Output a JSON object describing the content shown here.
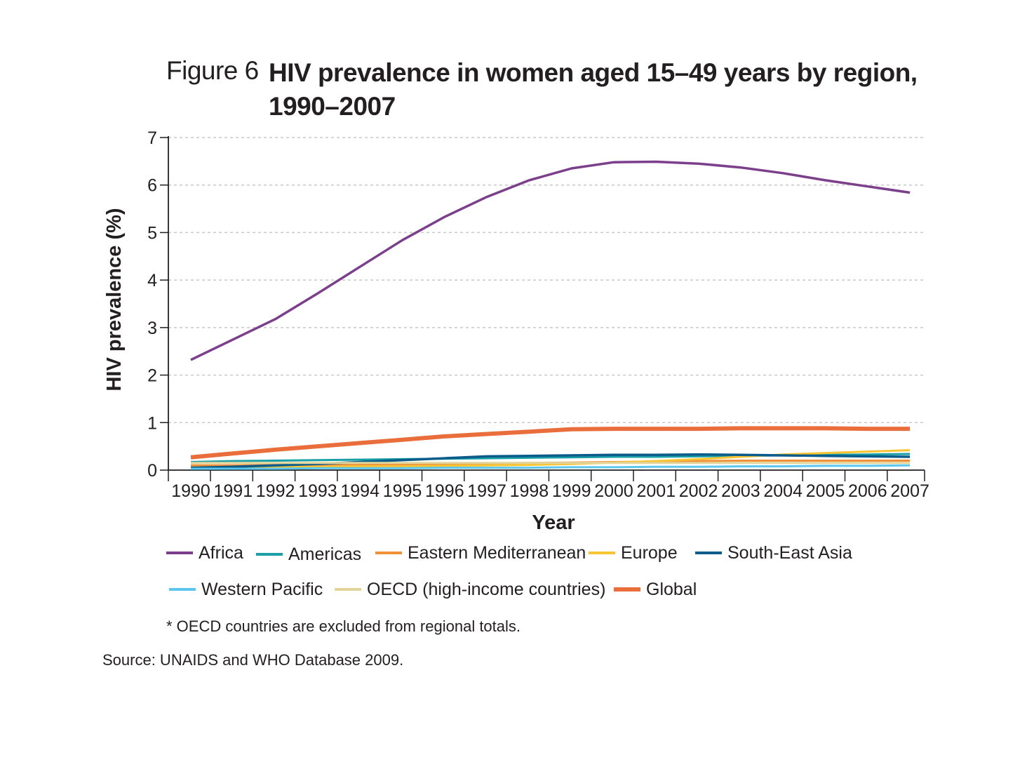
{
  "figure": {
    "label": "Figure 6",
    "title": "HIV prevalence in women aged 15–49 years by region, 1990–2007"
  },
  "footnote": "* OECD countries are excluded from regional totals.",
  "source": "Source: UNAIDS and WHO Database 2009.",
  "chart_data": {
    "type": "line",
    "title": "HIV prevalence in women aged 15–49 years by region, 1990–2007",
    "xlabel": "Year",
    "ylabel": "HIV prevalence (%)",
    "ylim": [
      0,
      7
    ],
    "yticks": [
      "0",
      "1",
      "2",
      "3",
      "4",
      "5",
      "6",
      "7"
    ],
    "x": [
      "1990",
      "1991",
      "1992",
      "1993",
      "1994",
      "1995",
      "1996",
      "1997",
      "1998",
      "1999",
      "2000",
      "2001",
      "2002",
      "2003",
      "2004",
      "2005",
      "2006",
      "2007"
    ],
    "grid": "horizontal dashed",
    "legend_position": "bottom",
    "series": [
      {
        "name": "Africa",
        "color": "#7b3f8c",
        "width": 3.5,
        "values": [
          2.32,
          2.75,
          3.18,
          3.72,
          4.28,
          4.84,
          5.33,
          5.75,
          6.1,
          6.35,
          6.48,
          6.49,
          6.45,
          6.37,
          6.25,
          6.1,
          5.97,
          5.84
        ]
      },
      {
        "name": "Americas",
        "color": "#1a9fa6",
        "width": 3,
        "values": [
          0.17,
          0.19,
          0.2,
          0.21,
          0.22,
          0.23,
          0.24,
          0.25,
          0.26,
          0.27,
          0.28,
          0.28,
          0.29,
          0.3,
          0.31,
          0.32,
          0.33,
          0.34
        ]
      },
      {
        "name": "Eastern Mediterranean",
        "color": "#f0913a",
        "width": 3,
        "values": [
          0.1,
          0.1,
          0.11,
          0.11,
          0.12,
          0.12,
          0.13,
          0.14,
          0.15,
          0.16,
          0.17,
          0.18,
          0.19,
          0.2,
          0.2,
          0.2,
          0.2,
          0.2
        ]
      },
      {
        "name": "Europe",
        "color": "#f7c531",
        "width": 3,
        "values": [
          0.06,
          0.06,
          0.07,
          0.07,
          0.08,
          0.08,
          0.09,
          0.1,
          0.11,
          0.13,
          0.16,
          0.19,
          0.23,
          0.28,
          0.33,
          0.36,
          0.39,
          0.42
        ]
      },
      {
        "name": "South-East Asia",
        "color": "#0b5c8a",
        "width": 3.5,
        "values": [
          0.05,
          0.07,
          0.1,
          0.13,
          0.17,
          0.21,
          0.25,
          0.29,
          0.3,
          0.31,
          0.32,
          0.32,
          0.33,
          0.32,
          0.31,
          0.3,
          0.29,
          0.28
        ]
      },
      {
        "name": "Western Pacific",
        "color": "#5bc6ee",
        "width": 3,
        "values": [
          0.03,
          0.03,
          0.03,
          0.04,
          0.04,
          0.04,
          0.05,
          0.05,
          0.05,
          0.06,
          0.06,
          0.07,
          0.07,
          0.08,
          0.08,
          0.09,
          0.09,
          0.1
        ]
      },
      {
        "name": "OECD (high-income countries)",
        "color": "#e3d49a",
        "width": 3,
        "values": [
          0.15,
          0.15,
          0.15,
          0.15,
          0.15,
          0.15,
          0.15,
          0.15,
          0.15,
          0.15,
          0.15,
          0.15,
          0.15,
          0.15,
          0.15,
          0.15,
          0.15,
          0.15
        ]
      },
      {
        "name": "Global",
        "color": "#ea6e3c",
        "width": 6,
        "values": [
          0.27,
          0.35,
          0.43,
          0.5,
          0.57,
          0.64,
          0.71,
          0.76,
          0.81,
          0.86,
          0.87,
          0.87,
          0.87,
          0.88,
          0.88,
          0.88,
          0.87,
          0.87
        ]
      }
    ]
  }
}
